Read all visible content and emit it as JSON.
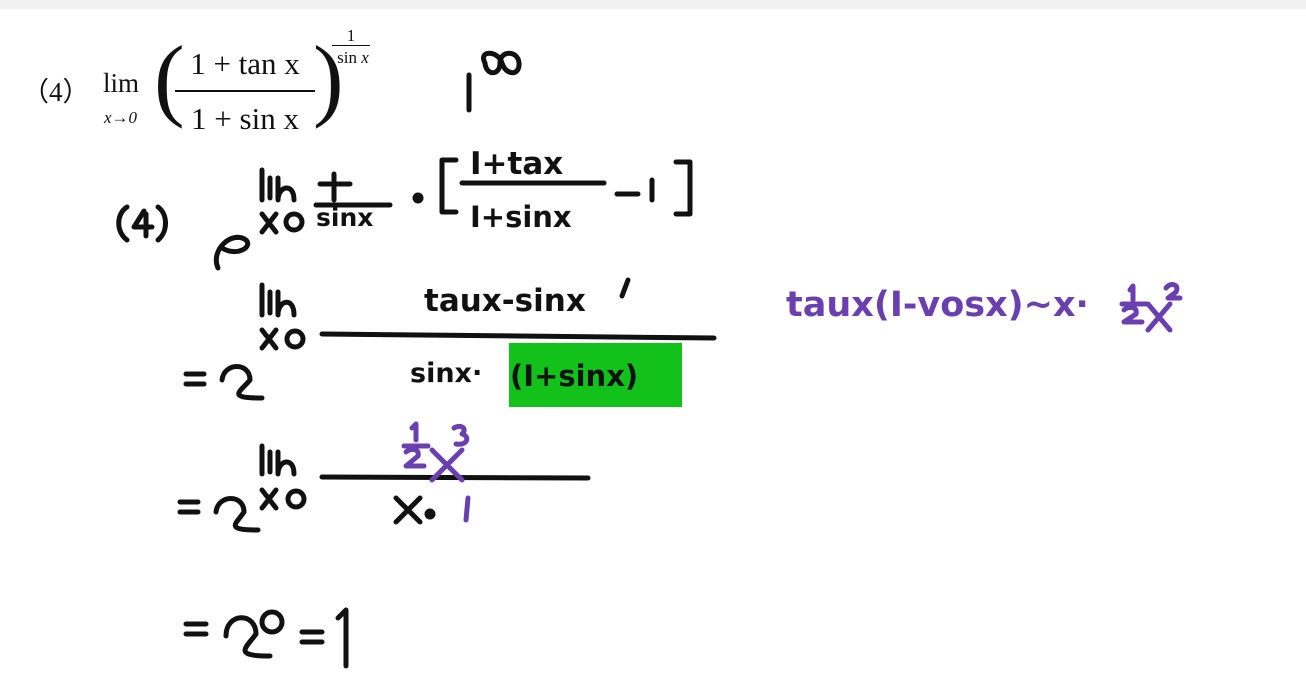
{
  "problem": {
    "label": "（4）",
    "lim": "lim",
    "lim_sub": "x→0",
    "numerator": "1 + tan x",
    "denominator": "1 + sin x",
    "exponent_num": "1",
    "exponent_den_text": "sin ",
    "exponent_den_var": "x",
    "paren_left": "(",
    "paren_right": ")"
  },
  "annotations": {
    "indeterminate_form": "1^∞",
    "step_marker": "(4)"
  },
  "steps": {
    "step1": "e^{lim_{x→0} 1/sinx · [ (1+tanx)/(1+sinx) − 1 ]}",
    "step2": "= e^{lim_{x→0} (tanx − sinx)/(sinx·(1+sinx))}",
    "step3": "= e^{lim_{x→0} (½x³)/(x·1)}",
    "step4": "= e⁰ = 1"
  },
  "side_note": "tanx(1−cosx) ~ x·½x²",
  "colors": {
    "black_ink": "#111111",
    "purple_ink": "#6a3fb0",
    "highlight": "#12c21a"
  }
}
